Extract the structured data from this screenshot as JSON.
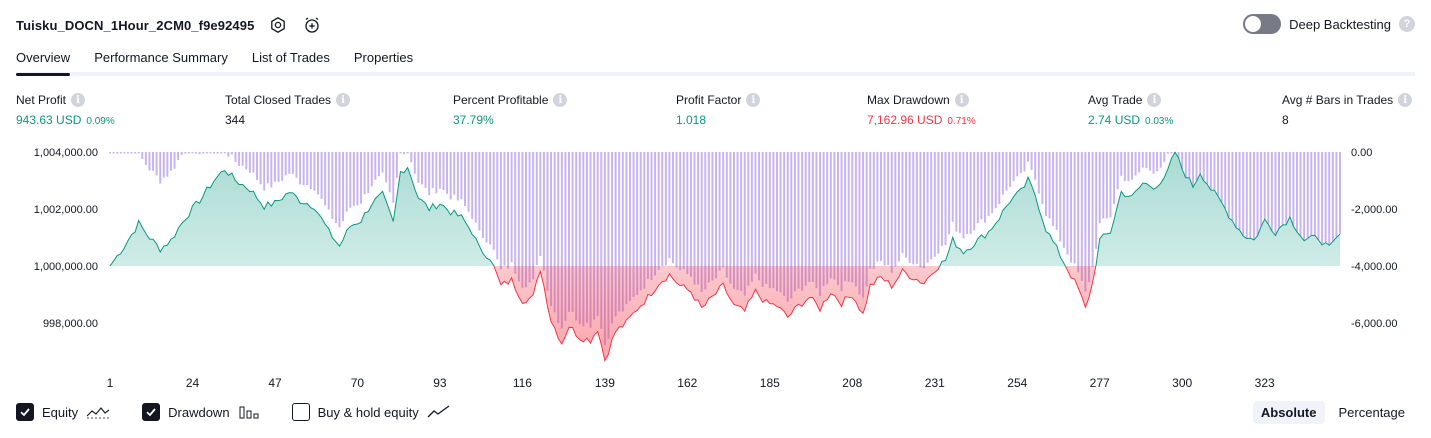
{
  "header": {
    "title": "Tuisku_DOCN_1Hour_2CM0_f9e92495",
    "settings_icon": "gear-icon",
    "add_alert_icon": "alarm-plus-icon",
    "deep_backtesting_label": "Deep Backtesting",
    "help_glyph": "?"
  },
  "tabs": [
    {
      "label": "Overview",
      "active": true
    },
    {
      "label": "Performance Summary",
      "active": false
    },
    {
      "label": "List of Trades",
      "active": false
    },
    {
      "label": "Properties",
      "active": false
    }
  ],
  "stats": [
    {
      "label": "Net Profit",
      "value": "943.63 USD",
      "pct": "0.09%",
      "color": "#089981"
    },
    {
      "label": "Total Closed Trades",
      "value": "344",
      "pct": "",
      "color": "#131722"
    },
    {
      "label": "Percent Profitable",
      "value": "37.79%",
      "pct": "",
      "color": "#089981"
    },
    {
      "label": "Profit Factor",
      "value": "1.018",
      "pct": "",
      "color": "#089981"
    },
    {
      "label": "Max Drawdown",
      "value": "7,162.96 USD",
      "pct": "0.71%",
      "color": "#f23645"
    },
    {
      "label": "Avg Trade",
      "value": "2.74 USD",
      "pct": "0.03%",
      "color": "#089981"
    },
    {
      "label": "Avg # Bars in Trades",
      "value": "8",
      "pct": "",
      "color": "#131722"
    }
  ],
  "info_glyph": "i",
  "chart_data": {
    "type": "area",
    "baseline": 1000000,
    "left_axis": {
      "ticks": [
        "1,004,000.00",
        "1,002,000.00",
        "1,000,000.00",
        "998,000.00"
      ],
      "values": [
        1004000,
        1002000,
        1000000,
        998000
      ]
    },
    "right_axis": {
      "ticks": [
        "0.00",
        "-2,000.00",
        "-4,000.00",
        "-6,000.00"
      ],
      "values": [
        0,
        -2000,
        -4000,
        -6000
      ]
    },
    "x_ticks": [
      "1",
      "24",
      "47",
      "70",
      "93",
      "116",
      "139",
      "162",
      "185",
      "208",
      "231",
      "254",
      "277",
      "300",
      "323"
    ],
    "x_tick_values": [
      1,
      24,
      47,
      70,
      93,
      116,
      139,
      162,
      185,
      208,
      231,
      254,
      277,
      300,
      323
    ],
    "x_range": [
      1,
      344
    ],
    "equity_keypoints": [
      [
        1,
        1000000
      ],
      [
        5,
        1000700
      ],
      [
        9,
        1001500
      ],
      [
        12,
        1001000
      ],
      [
        15,
        1000600
      ],
      [
        18,
        1000900
      ],
      [
        22,
        1001700
      ],
      [
        26,
        1002300
      ],
      [
        30,
        1003000
      ],
      [
        33,
        1003400
      ],
      [
        36,
        1003000
      ],
      [
        40,
        1002700
      ],
      [
        44,
        1002100
      ],
      [
        47,
        1002200
      ],
      [
        51,
        1002600
      ],
      [
        54,
        1002300
      ],
      [
        58,
        1002100
      ],
      [
        62,
        1001200
      ],
      [
        65,
        1000700
      ],
      [
        68,
        1001400
      ],
      [
        71,
        1001600
      ],
      [
        74,
        1002200
      ],
      [
        77,
        1002500
      ],
      [
        80,
        1001500
      ],
      [
        82,
        1003300
      ],
      [
        84,
        1003500
      ],
      [
        87,
        1002400
      ],
      [
        90,
        1002000
      ],
      [
        93,
        1002200
      ],
      [
        96,
        1001900
      ],
      [
        99,
        1001700
      ],
      [
        102,
        1001200
      ],
      [
        104,
        1000600
      ],
      [
        107,
        1000300
      ],
      [
        110,
        999300
      ],
      [
        113,
        999500
      ],
      [
        116,
        998800
      ],
      [
        119,
        998900
      ],
      [
        121,
        999900
      ],
      [
        124,
        998100
      ],
      [
        127,
        997300
      ],
      [
        129,
        997900
      ],
      [
        132,
        997500
      ],
      [
        135,
        997400
      ],
      [
        137,
        997800
      ],
      [
        139,
        996700
      ],
      [
        142,
        997700
      ],
      [
        145,
        998000
      ],
      [
        148,
        998500
      ],
      [
        151,
        998900
      ],
      [
        154,
        999400
      ],
      [
        157,
        999700
      ],
      [
        160,
        999300
      ],
      [
        163,
        999100
      ],
      [
        166,
        998500
      ],
      [
        169,
        998900
      ],
      [
        172,
        999300
      ],
      [
        175,
        998600
      ],
      [
        178,
        998400
      ],
      [
        181,
        999100
      ],
      [
        184,
        998700
      ],
      [
        187,
        998600
      ],
      [
        190,
        998200
      ],
      [
        193,
        998600
      ],
      [
        196,
        998900
      ],
      [
        199,
        998500
      ],
      [
        202,
        999100
      ],
      [
        205,
        998700
      ],
      [
        208,
        999000
      ],
      [
        211,
        998300
      ],
      [
        213,
        999300
      ],
      [
        216,
        999600
      ],
      [
        219,
        999300
      ],
      [
        222,
        999800
      ],
      [
        225,
        999600
      ],
      [
        228,
        999400
      ],
      [
        231,
        999900
      ],
      [
        234,
        1000200
      ],
      [
        236,
        1000900
      ],
      [
        239,
        1000500
      ],
      [
        242,
        1000800
      ],
      [
        246,
        1001200
      ],
      [
        249,
        1001700
      ],
      [
        252,
        1002300
      ],
      [
        255,
        1002600
      ],
      [
        257,
        1003000
      ],
      [
        259,
        1002500
      ],
      [
        262,
        1001300
      ],
      [
        265,
        1000600
      ],
      [
        268,
        999900
      ],
      [
        271,
        999200
      ],
      [
        273,
        998500
      ],
      [
        275,
        999400
      ],
      [
        277,
        1000900
      ],
      [
        280,
        1001200
      ],
      [
        283,
        1002600
      ],
      [
        286,
        1002400
      ],
      [
        289,
        1002900
      ],
      [
        292,
        1002800
      ],
      [
        295,
        1003000
      ],
      [
        298,
        1004000
      ],
      [
        300,
        1003400
      ],
      [
        303,
        1002800
      ],
      [
        305,
        1003300
      ],
      [
        308,
        1002700
      ],
      [
        311,
        1002200
      ],
      [
        314,
        1001600
      ],
      [
        317,
        1001100
      ],
      [
        320,
        1000900
      ],
      [
        323,
        1001600
      ],
      [
        326,
        1001200
      ],
      [
        330,
        1001700
      ],
      [
        334,
        1000900
      ],
      [
        338,
        1001000
      ],
      [
        341,
        1000600
      ],
      [
        344,
        1001100
      ]
    ],
    "colors": {
      "equity_positive": "#089981",
      "equity_negative": "#f23645",
      "drawdown": "#c8b3f2"
    },
    "grid": false
  },
  "legend": [
    {
      "label": "Equity",
      "checked": true,
      "icon": "equity-line-icon"
    },
    {
      "label": "Drawdown",
      "checked": true,
      "icon": "drawdown-bars-icon"
    },
    {
      "label": "Buy & hold equity",
      "checked": false,
      "icon": "buy-hold-line-icon"
    }
  ],
  "modes": [
    {
      "label": "Absolute",
      "active": true
    },
    {
      "label": "Percentage",
      "active": false
    }
  ]
}
